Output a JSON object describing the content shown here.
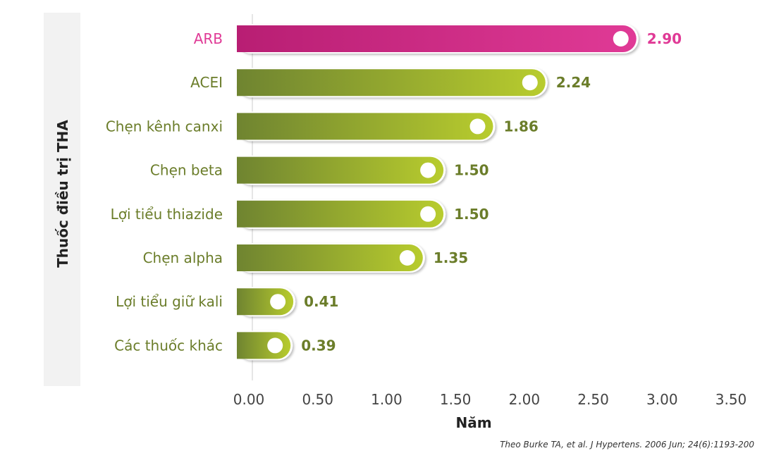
{
  "chart_data": {
    "type": "bar",
    "orientation": "horizontal",
    "categories": [
      "ARB",
      "ACEI",
      "Chẹn kênh canxi",
      "Chẹn beta",
      "Lợi tiểu thiazide",
      "Chẹn alpha",
      "Lợi tiểu giữ kali",
      "Các thuốc khác"
    ],
    "values": [
      2.9,
      2.24,
      1.86,
      1.5,
      1.5,
      1.35,
      0.41,
      0.39
    ],
    "value_labels": [
      "2.90",
      "2.24",
      "1.86",
      "1.50",
      "1.50",
      "1.35",
      "0.41",
      "0.39"
    ],
    "xlabel": "Năm",
    "ylabel": "Thuốc điều trị THA",
    "xlim": [
      0,
      3.5
    ],
    "x_ticks": [
      "0.00",
      "0.50",
      "1.00",
      "1.50",
      "2.00",
      "2.50",
      "3.00",
      "3.50"
    ],
    "highlight_index": 0,
    "grid": false,
    "legend": "none"
  },
  "colors": {
    "highlight": "#e03a96",
    "highlight_dark": "#b81e73",
    "bar_light": "#b8cc2e",
    "bar_dark": "#6f8430",
    "label_green": "#6b7d2a",
    "axis_band": "#f2f2f2"
  },
  "source": "Theo Burke TA, et al. J Hypertens. 2006 Jun; 24(6):1193-200"
}
